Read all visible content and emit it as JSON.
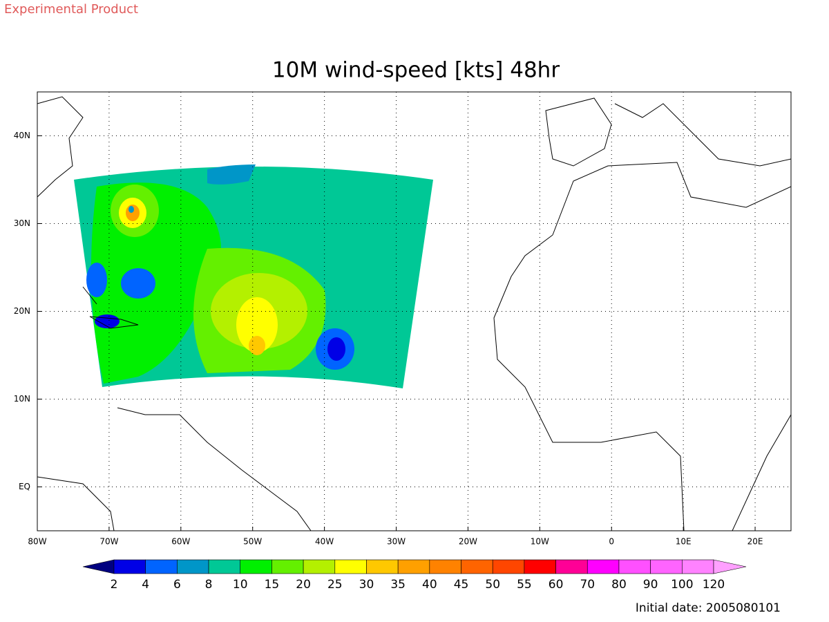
{
  "header": {
    "product": "Experimental Product",
    "title": "10M wind-speed [kts] 48hr"
  },
  "map": {
    "xlim": [
      -80,
      25
    ],
    "ylim": [
      -5,
      45
    ],
    "xticks": [
      {
        "value": -80,
        "label": "80W"
      },
      {
        "value": -70,
        "label": "70W"
      },
      {
        "value": -60,
        "label": "60W"
      },
      {
        "value": -50,
        "label": "50W"
      },
      {
        "value": -40,
        "label": "40W"
      },
      {
        "value": -30,
        "label": "30W"
      },
      {
        "value": -20,
        "label": "20W"
      },
      {
        "value": -10,
        "label": "10W"
      },
      0,
      {
        "value": 10,
        "label": "10E"
      },
      {
        "value": 20,
        "label": "20E"
      }
    ],
    "yticks": [
      {
        "value": 40,
        "label": "40N"
      },
      {
        "value": 30,
        "label": "30N"
      },
      {
        "value": 20,
        "label": "20N"
      },
      {
        "value": 10,
        "label": "10N"
      },
      {
        "value": 0,
        "label": "EQ"
      }
    ],
    "grid": true
  },
  "colorbar": {
    "levels": [
      2,
      4,
      6,
      8,
      10,
      15,
      20,
      25,
      30,
      35,
      40,
      45,
      50,
      55,
      60,
      70,
      80,
      90,
      100,
      120
    ],
    "colors": [
      "#000080",
      "#0000e6",
      "#0064ff",
      "#0096c8",
      "#00c896",
      "#00f000",
      "#64f000",
      "#b4f000",
      "#ffff00",
      "#ffc800",
      "#ffa000",
      "#ff8200",
      "#ff6400",
      "#ff4600",
      "#ff0000",
      "#ff0096",
      "#ff00ff",
      "#ff50ff",
      "#ff64ff",
      "#ff82ff",
      "#ffa0ff"
    ]
  },
  "footer": {
    "initial_date": "Initial date: 2005080101"
  }
}
